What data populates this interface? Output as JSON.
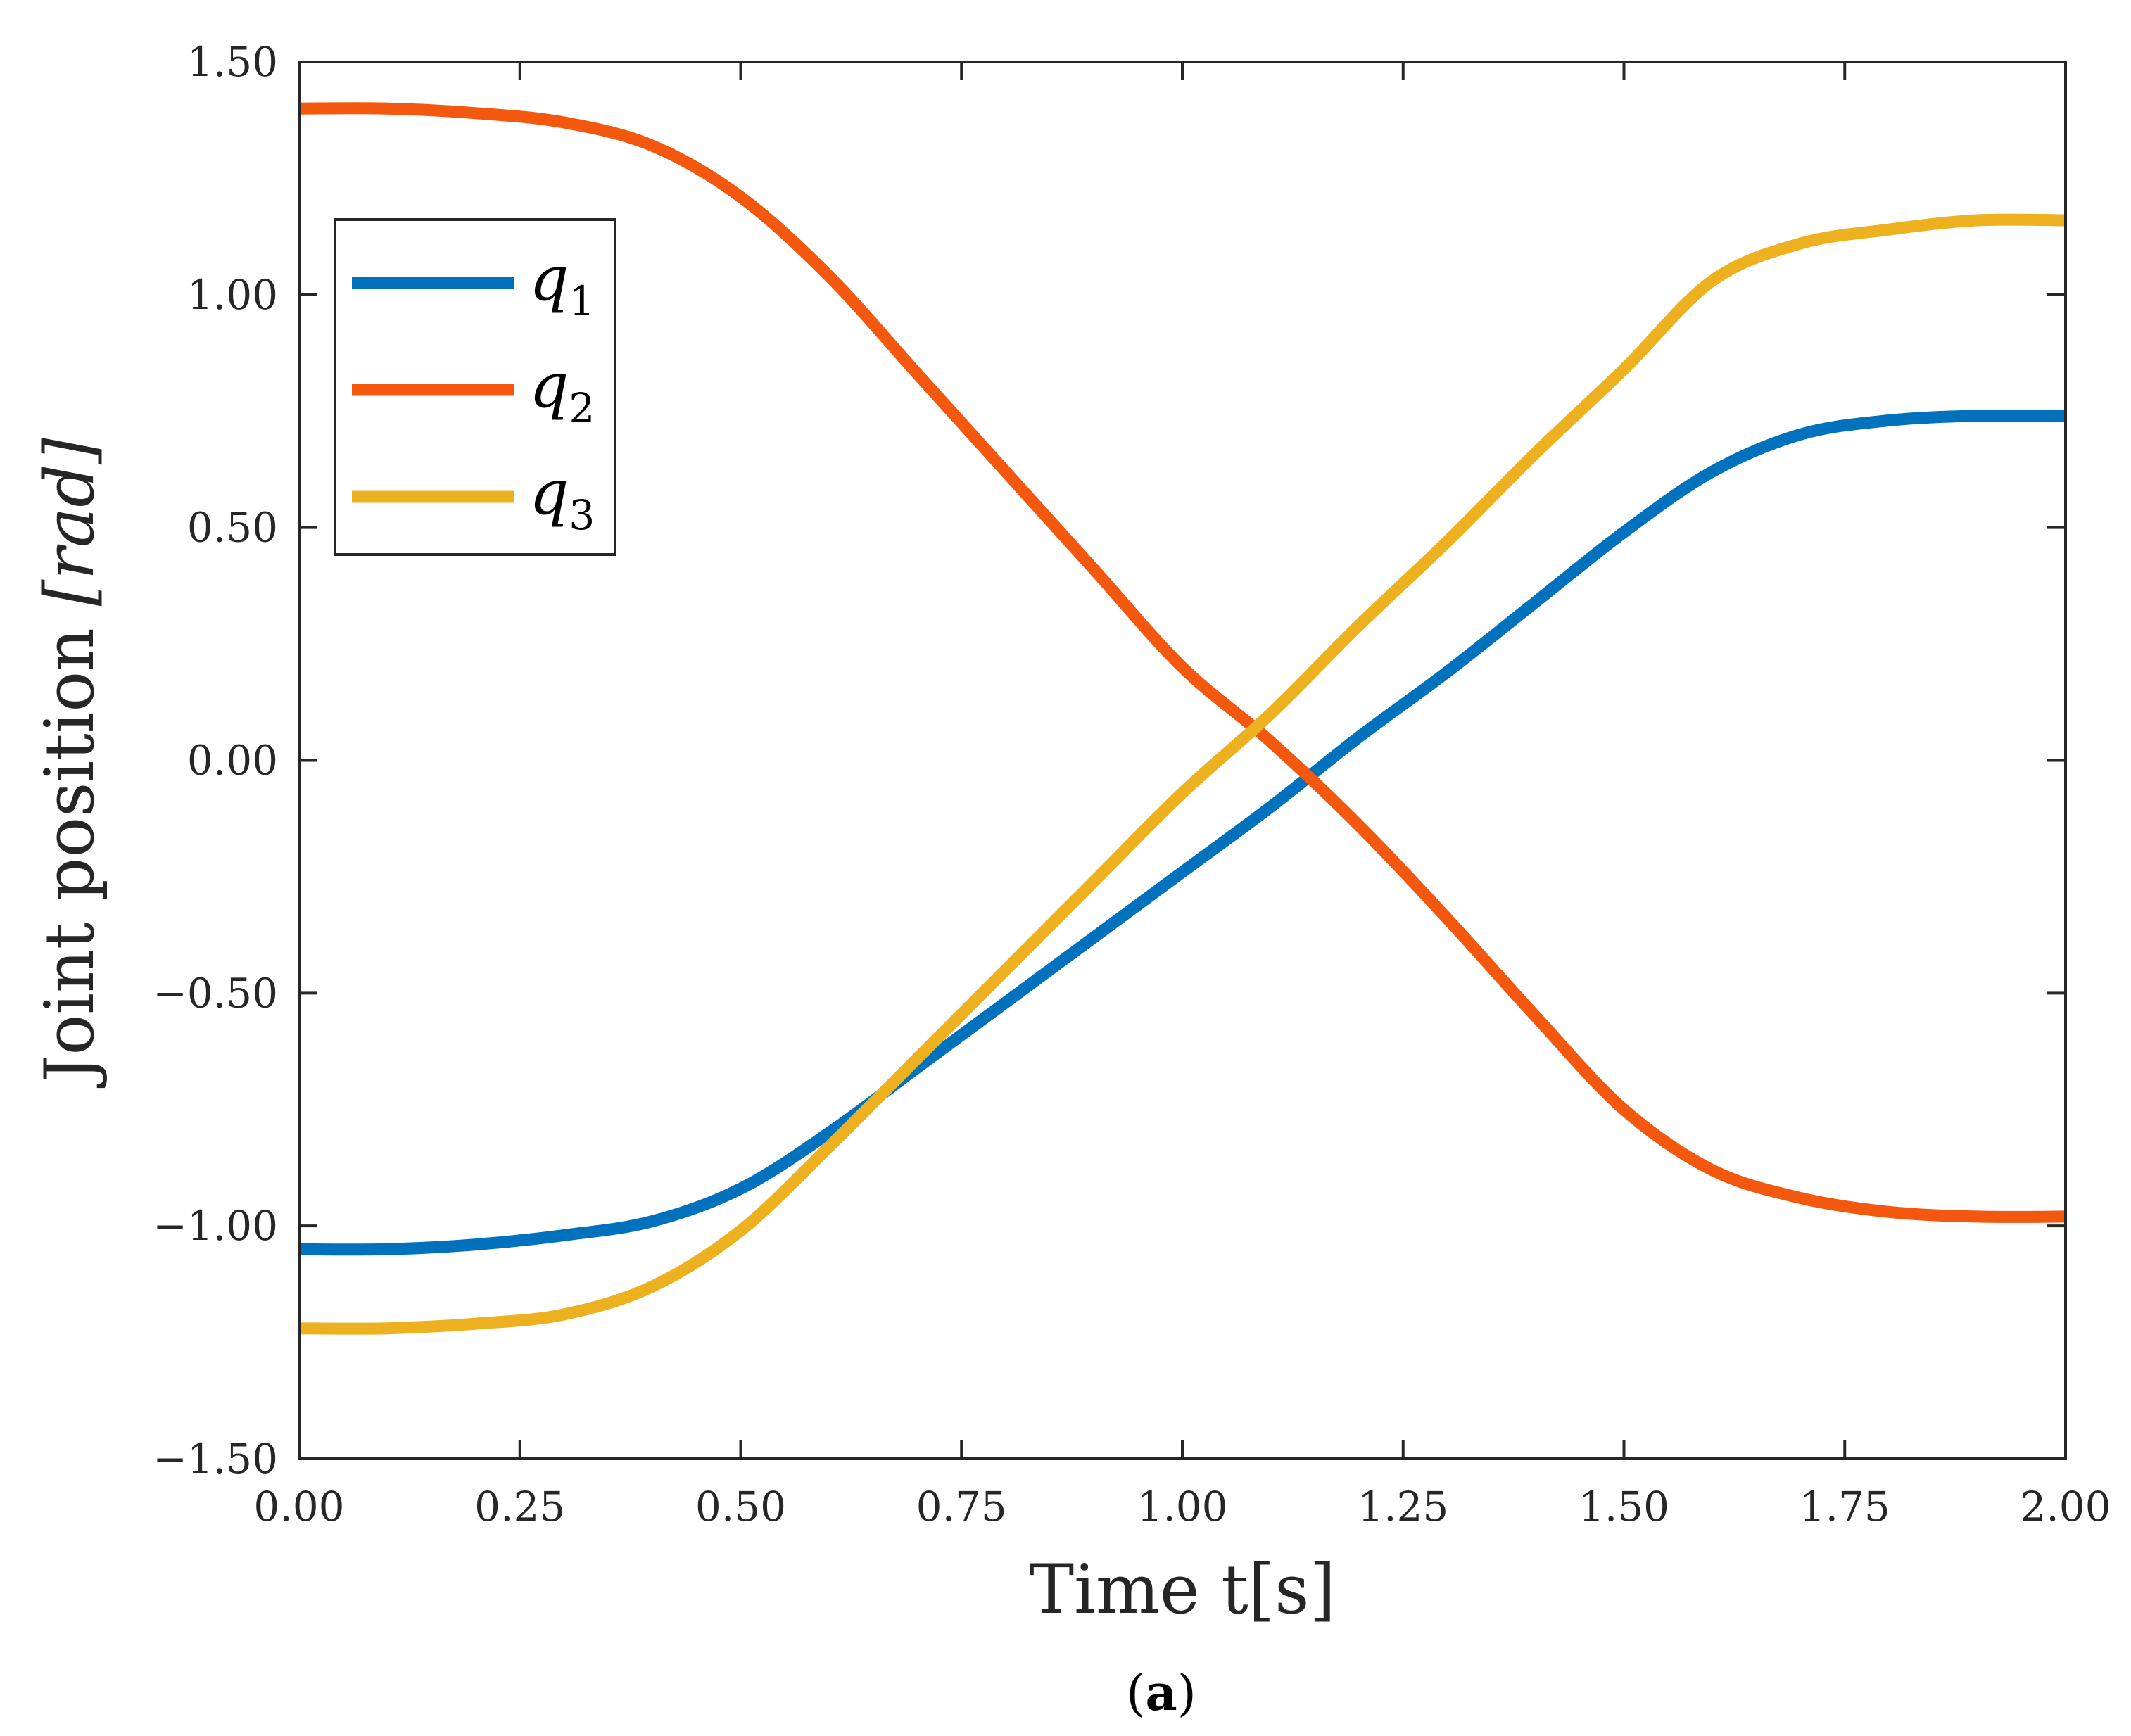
{
  "chart_data": {
    "type": "line",
    "title": "",
    "xlabel": "Time t[s]",
    "ylabel": "Joint position [rad]",
    "ylabel_parts": {
      "text": "Joint position ",
      "unit": "[rad]"
    },
    "xlim": [
      0,
      2
    ],
    "ylim": [
      -1.5,
      1.5
    ],
    "grid": false,
    "legend_position": "upper-left",
    "x_ticks": [
      0,
      0.25,
      0.5,
      0.75,
      1,
      1.25,
      1.5,
      1.75,
      2
    ],
    "x_tick_labels": [
      "0.00",
      "0.25",
      "0.50",
      "0.75",
      "1.00",
      "1.25",
      "1.50",
      "1.75",
      "2.00"
    ],
    "y_ticks": [
      -1.5,
      -1,
      -0.5,
      0,
      0.5,
      1,
      1.5
    ],
    "y_tick_labels": [
      "−1.50",
      "−1.00",
      "−0.50",
      "0.00",
      "0.50",
      "1.00",
      "1.50"
    ],
    "series": [
      {
        "name": "q1",
        "base": "q",
        "sub": "1",
        "color": "#0072BD",
        "x": [
          0,
          0.1,
          0.2,
          0.3,
          0.4,
          0.5,
          0.6,
          0.7,
          0.8,
          0.9,
          1.0,
          1.1,
          1.2,
          1.3,
          1.4,
          1.5,
          1.6,
          1.7,
          1.8,
          1.9,
          2.0
        ],
        "values": [
          -1.05,
          -1.05,
          -1.04,
          -1.02,
          -0.99,
          -0.92,
          -0.8,
          -0.66,
          -0.52,
          -0.38,
          -0.24,
          -0.1,
          0.05,
          0.19,
          0.34,
          0.49,
          0.62,
          0.7,
          0.73,
          0.74,
          0.74
        ]
      },
      {
        "name": "q2",
        "base": "q",
        "sub": "2",
        "color": "#F4570E",
        "x": [
          0,
          0.1,
          0.2,
          0.3,
          0.4,
          0.5,
          0.6,
          0.7,
          0.8,
          0.9,
          1.0,
          1.1,
          1.2,
          1.3,
          1.4,
          1.5,
          1.6,
          1.7,
          1.8,
          1.9,
          2.0
        ],
        "values": [
          1.4,
          1.4,
          1.39,
          1.37,
          1.32,
          1.21,
          1.04,
          0.83,
          0.62,
          0.41,
          0.2,
          0.04,
          -0.14,
          -0.34,
          -0.55,
          -0.75,
          -0.88,
          -0.94,
          -0.97,
          -0.98,
          -0.98
        ]
      },
      {
        "name": "q3",
        "base": "q",
        "sub": "3",
        "color": "#EDB120",
        "x": [
          0,
          0.1,
          0.2,
          0.3,
          0.4,
          0.5,
          0.6,
          0.7,
          0.8,
          0.9,
          1.0,
          1.1,
          1.2,
          1.3,
          1.4,
          1.5,
          1.6,
          1.7,
          1.8,
          1.9,
          2.0
        ],
        "values": [
          -1.22,
          -1.22,
          -1.21,
          -1.19,
          -1.13,
          -1.01,
          -0.83,
          -0.64,
          -0.45,
          -0.26,
          -0.07,
          0.1,
          0.29,
          0.47,
          0.66,
          0.84,
          1.03,
          1.11,
          1.14,
          1.16,
          1.16
        ]
      }
    ]
  },
  "caption": {
    "open": "(",
    "letter": "a",
    "close": ")"
  }
}
